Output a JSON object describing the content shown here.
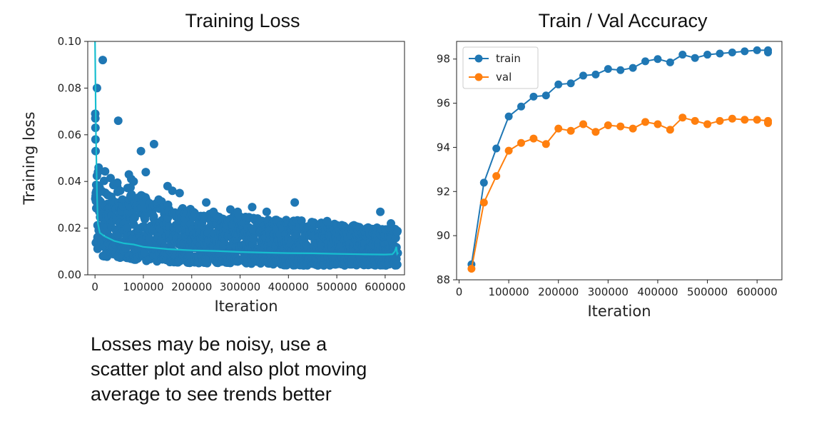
{
  "caption": {
    "line1": "Losses may be noisy, use a",
    "line2": "scatter plot and also plot moving",
    "line3": "average to see trends better"
  },
  "colors": {
    "blue": "#1f77b4",
    "orange": "#ff7f0e",
    "teal": "#17becf"
  },
  "chart_data": [
    {
      "type": "scatter",
      "title": "Training Loss",
      "xlabel": "Iteration",
      "ylabel": "Training loss",
      "xlim": [
        -15000,
        640000
      ],
      "ylim": [
        0,
        0.1
      ],
      "xticks": [
        "0",
        "100000",
        "200000",
        "300000",
        "400000",
        "500000",
        "600000"
      ],
      "xtick_values": [
        0,
        100000,
        200000,
        300000,
        400000,
        500000,
        600000
      ],
      "yticks": [
        "0.00",
        "0.02",
        "0.04",
        "0.06",
        "0.08",
        "0.10"
      ],
      "ytick_values": [
        0,
        0.02,
        0.04,
        0.06,
        0.08,
        0.1
      ],
      "band_upper": [
        [
          0,
          0.05
        ],
        [
          10000,
          0.046
        ],
        [
          50000,
          0.04
        ],
        [
          100000,
          0.035
        ],
        [
          150000,
          0.031
        ],
        [
          200000,
          0.028
        ],
        [
          300000,
          0.025
        ],
        [
          400000,
          0.024
        ],
        [
          500000,
          0.022
        ],
        [
          600000,
          0.02
        ],
        [
          625000,
          0.02
        ]
      ],
      "band_lower": [
        [
          0,
          0.01
        ],
        [
          10000,
          0.008
        ],
        [
          100000,
          0.006
        ],
        [
          200000,
          0.005
        ],
        [
          300000,
          0.005
        ],
        [
          400000,
          0.004
        ],
        [
          500000,
          0.004
        ],
        [
          600000,
          0.004
        ],
        [
          625000,
          0.004
        ]
      ],
      "outliers": [
        [
          500,
          0.069
        ],
        [
          700,
          0.067
        ],
        [
          900,
          0.063
        ],
        [
          1000,
          0.058
        ],
        [
          1200,
          0.053
        ],
        [
          4000,
          0.08
        ],
        [
          16000,
          0.092
        ],
        [
          48000,
          0.066
        ],
        [
          95000,
          0.053
        ],
        [
          105000,
          0.044
        ],
        [
          122000,
          0.056
        ],
        [
          70000,
          0.043
        ],
        [
          75000,
          0.041
        ],
        [
          80000,
          0.04
        ],
        [
          150000,
          0.038
        ],
        [
          160000,
          0.036
        ],
        [
          175000,
          0.035
        ],
        [
          230000,
          0.031
        ],
        [
          245000,
          0.027
        ],
        [
          280000,
          0.028
        ],
        [
          295000,
          0.027
        ],
        [
          325000,
          0.029
        ],
        [
          355000,
          0.027
        ],
        [
          413000,
          0.031
        ],
        [
          480000,
          0.023
        ],
        [
          590000,
          0.027
        ],
        [
          612000,
          0.022
        ]
      ],
      "moving_average": {
        "name": "",
        "x": [
          0,
          2000,
          4000,
          6000,
          10000,
          20000,
          40000,
          60000,
          80000,
          100000,
          150000,
          200000,
          250000,
          300000,
          350000,
          400000,
          450000,
          500000,
          550000,
          600000,
          615000,
          620000,
          623000,
          625000,
          627000
        ],
        "y": [
          0.1,
          0.06,
          0.035,
          0.022,
          0.018,
          0.0165,
          0.0145,
          0.0135,
          0.013,
          0.012,
          0.011,
          0.0105,
          0.0102,
          0.0098,
          0.0095,
          0.0093,
          0.0092,
          0.009,
          0.0088,
          0.0087,
          0.0088,
          0.01,
          0.012,
          0.009,
          0.0095
        ]
      }
    },
    {
      "type": "line",
      "title": "Train / Val Accuracy",
      "xlabel": "Iteration",
      "ylabel": "",
      "xlim": [
        -5000,
        650000
      ],
      "ylim": [
        88,
        98.8
      ],
      "xticks": [
        "0",
        "100000",
        "200000",
        "300000",
        "400000",
        "500000",
        "600000"
      ],
      "xtick_values": [
        0,
        100000,
        200000,
        300000,
        400000,
        500000,
        600000
      ],
      "yticks": [
        "88",
        "90",
        "92",
        "94",
        "96",
        "98"
      ],
      "ytick_values": [
        88,
        90,
        92,
        94,
        96,
        98
      ],
      "legend_position": "top-left",
      "x": [
        25000,
        50000,
        75000,
        100000,
        125000,
        150000,
        175000,
        200000,
        225000,
        250000,
        275000,
        300000,
        325000,
        350000,
        375000,
        400000,
        425000,
        450000,
        475000,
        500000,
        525000,
        550000,
        575000,
        600000,
        622000,
        622000
      ],
      "series": [
        {
          "name": "train",
          "color": "#1f77b4",
          "values": [
            88.7,
            92.4,
            93.95,
            95.4,
            95.85,
            96.3,
            96.35,
            96.85,
            96.9,
            97.25,
            97.3,
            97.55,
            97.5,
            97.6,
            97.9,
            98.0,
            97.85,
            98.2,
            98.05,
            98.2,
            98.25,
            98.3,
            98.35,
            98.4,
            98.4,
            98.3
          ]
        },
        {
          "name": "val",
          "color": "#ff7f0e",
          "values": [
            88.5,
            91.5,
            92.7,
            93.85,
            94.2,
            94.4,
            94.15,
            94.85,
            94.75,
            95.05,
            94.7,
            95.0,
            94.95,
            94.85,
            95.15,
            95.05,
            94.8,
            95.35,
            95.2,
            95.05,
            95.2,
            95.3,
            95.25,
            95.25,
            95.2,
            95.1
          ]
        }
      ]
    }
  ]
}
